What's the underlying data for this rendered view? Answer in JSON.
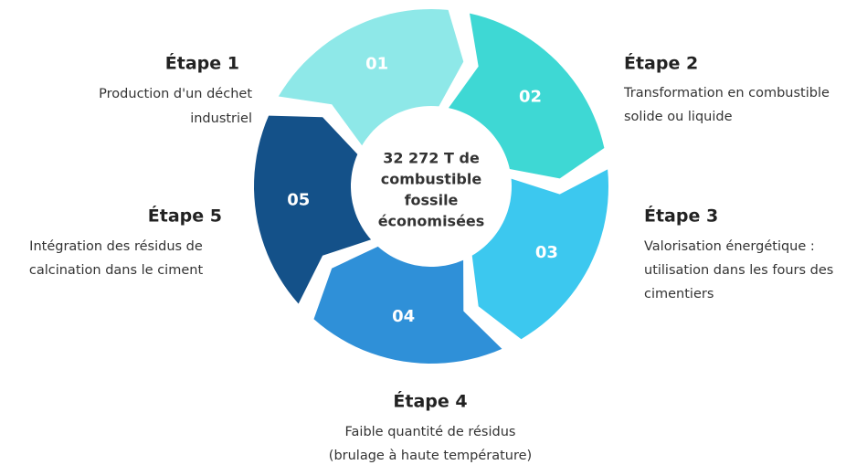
{
  "center": {
    "lines": [
      "32 272 T de",
      "combustible",
      "fossile",
      "économisées"
    ]
  },
  "steps": [
    {
      "number": "01",
      "title": "Étape 1",
      "lines": [
        "Production d'un déchet",
        "industriel"
      ]
    },
    {
      "number": "02",
      "title": "Étape 2",
      "lines": [
        "Transformation en combustible",
        "solide ou liquide"
      ]
    },
    {
      "number": "03",
      "title": "Étape 3",
      "lines": [
        "Valorisation énergétique :",
        "utilisation dans les fours des",
        "cimentiers"
      ]
    },
    {
      "number": "04",
      "title": "Étape 4",
      "lines": [
        "Faible quantité de résidus",
        "(brulage à haute température)"
      ]
    },
    {
      "number": "05",
      "title": "Étape 5",
      "lines": [
        "Intégration des résidus de",
        "calcination dans le ciment"
      ]
    }
  ]
}
